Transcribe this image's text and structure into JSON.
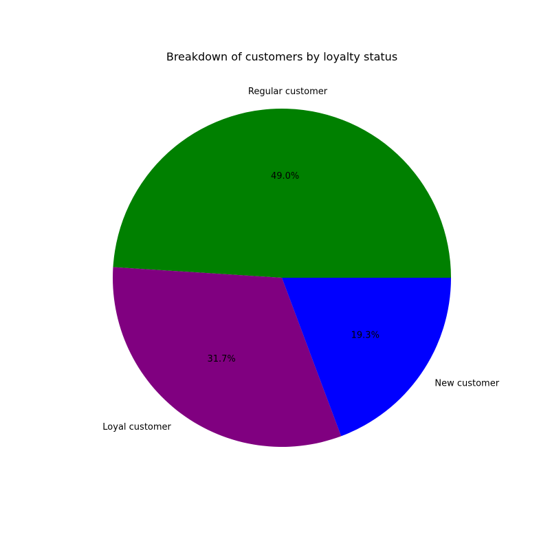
{
  "chart_data": {
    "type": "pie",
    "title": "Breakdown of customers by loyalty status",
    "start_angle_deg": 0,
    "direction": "counterclockwise",
    "slices": [
      {
        "label": "Regular customer",
        "value": 49.0,
        "pct_label": "49.0%",
        "color": "#008000"
      },
      {
        "label": "Loyal customer",
        "value": 31.7,
        "pct_label": "31.7%",
        "color": "#800080"
      },
      {
        "label": "New customer",
        "value": 19.3,
        "pct_label": "19.3%",
        "color": "#0000ff"
      }
    ]
  }
}
